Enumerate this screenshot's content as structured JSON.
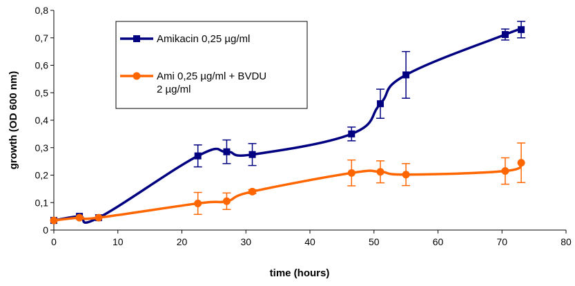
{
  "chart_data": {
    "type": "line",
    "xlabel": "time (hours)",
    "ylabel": "growth (OD 600 nm)",
    "xlim": [
      0,
      80
    ],
    "ylim": [
      0,
      0.8
    ],
    "xticks": [
      "0",
      "10",
      "20",
      "30",
      "40",
      "50",
      "60",
      "70",
      "80"
    ],
    "yticks": [
      "0",
      "0,1",
      "0,2",
      "0,3",
      "0,4",
      "0,5",
      "0,6",
      "0,7",
      "0,8"
    ],
    "grid": false,
    "legend_placement": "top-left",
    "series": [
      {
        "name": "Amikacin 0,25 µg/ml",
        "color": "#000080",
        "marker": "square",
        "x": [
          0,
          4,
          7,
          22.5,
          27,
          31,
          46.5,
          51,
          55,
          70.5,
          73
        ],
        "y": [
          0.035,
          0.05,
          0.045,
          0.27,
          0.285,
          0.275,
          0.35,
          0.46,
          0.565,
          0.712,
          0.73
        ],
        "error": [
          0,
          0,
          0,
          0.04,
          0.043,
          0.04,
          0.025,
          0.053,
          0.085,
          0.02,
          0.03
        ]
      },
      {
        "name": "Ami 0,25 µg/ml + BVDU 2 µg/ml",
        "name_lines": [
          "Ami 0,25 µg/ml + BVDU",
          "2 µg/ml"
        ],
        "color": "#FF6600",
        "marker": "circle",
        "x": [
          0,
          4,
          7,
          22.5,
          27,
          31,
          46.5,
          51,
          55,
          70.5,
          73
        ],
        "y": [
          0.035,
          0.045,
          0.045,
          0.097,
          0.105,
          0.14,
          0.208,
          0.212,
          0.202,
          0.215,
          0.245
        ],
        "error": [
          0,
          0,
          0,
          0.04,
          0.03,
          0.007,
          0.047,
          0.04,
          0.04,
          0.048,
          0.072
        ]
      }
    ]
  }
}
